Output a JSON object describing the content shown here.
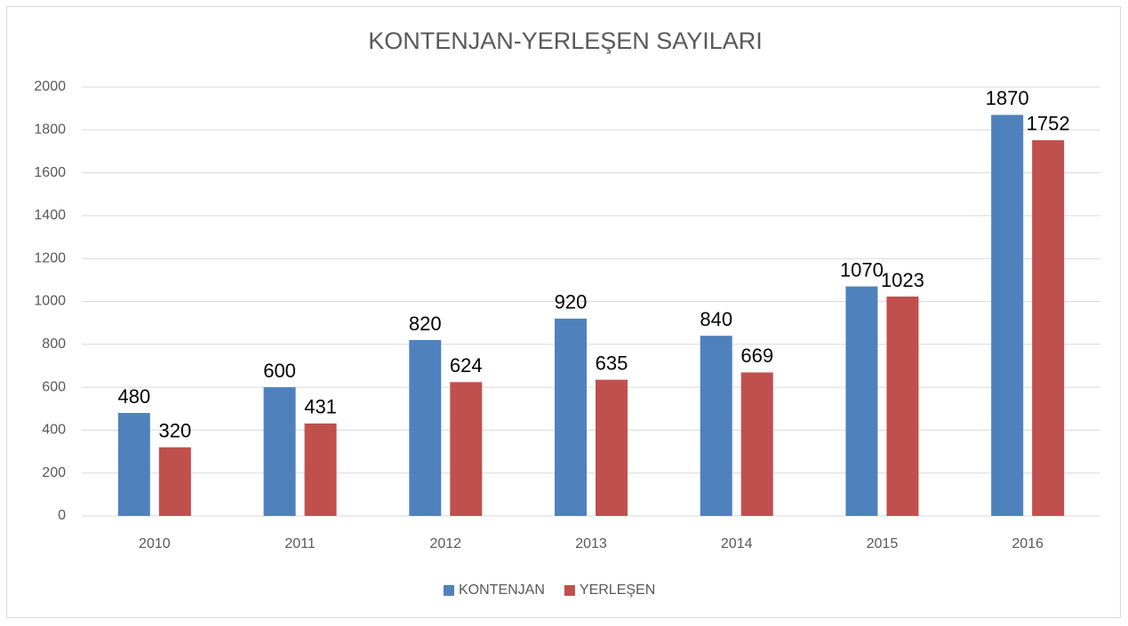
{
  "chart_data": {
    "type": "bar",
    "title": "KONTENJAN-YERLEŞEN SAYILARI",
    "categories": [
      "2010",
      "2011",
      "2012",
      "2013",
      "2014",
      "2015",
      "2016"
    ],
    "series": [
      {
        "name": "KONTENJAN",
        "color": "#4f81bd",
        "values": [
          480,
          600,
          820,
          920,
          840,
          1070,
          1870
        ]
      },
      {
        "name": "YERLEŞEN",
        "color": "#c0504d",
        "values": [
          320,
          431,
          624,
          635,
          669,
          1023,
          1752
        ]
      }
    ],
    "ylim": [
      0,
      2000
    ],
    "yticks": [
      0,
      200,
      400,
      600,
      800,
      1000,
      1200,
      1400,
      1600,
      1800,
      2000
    ],
    "grid": true,
    "legend": "bottom"
  }
}
